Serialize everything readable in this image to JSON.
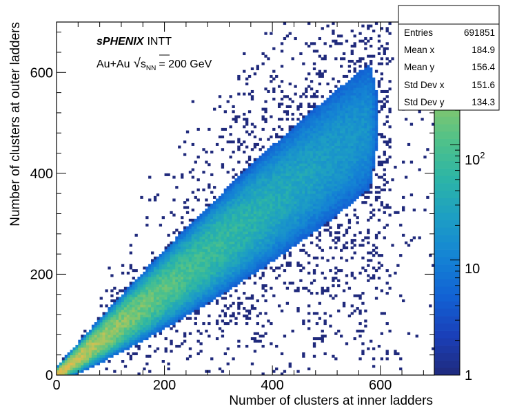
{
  "chart_data": {
    "type": "heatmap",
    "title": "",
    "xlabel": "Number of clusters at inner ladders",
    "ylabel": "Number of clusters at outer ladders",
    "xlim": [
      0,
      700
    ],
    "ylim": [
      0,
      700
    ],
    "x_ticks": [
      0,
      200,
      400,
      600
    ],
    "y_ticks": [
      0,
      200,
      400,
      600
    ],
    "grid": false,
    "colorbar": {
      "scale": "log",
      "range": [
        1,
        1200
      ],
      "tick_values": [
        1,
        10,
        100
      ],
      "tick_labels": [
        {
          "base": "1",
          "exp": ""
        },
        {
          "base": "10",
          "exp": ""
        },
        {
          "base": "10",
          "exp": "2"
        }
      ],
      "palette": [
        "#202a7c",
        "#1a3fb8",
        "#1262d4",
        "#1483d4",
        "#1d9ec4",
        "#2cb5a6",
        "#52c288",
        "#8ac66a",
        "#c3c257",
        "#e4b94d"
      ]
    },
    "band": {
      "trend_slope": 0.85,
      "x_extent": [
        0,
        580
      ],
      "peak_at_origin": true
    },
    "annotations": {
      "experiment": "sPHENIX",
      "detector": "INTT",
      "collision": "Au+Au",
      "sqrt_symbol": "√",
      "sqrt_var": "s",
      "sqrt_sub": "NN",
      "energy": "= 200 GeV"
    },
    "stats": {
      "legend_position": "top-right",
      "rows": [
        {
          "label": "Entries",
          "value": "691851"
        },
        {
          "label": "Mean x",
          "value": "184.9"
        },
        {
          "label": "Mean y",
          "value": "156.4"
        },
        {
          "label": "Std Dev x",
          "value": "151.6"
        },
        {
          "label": "Std Dev y",
          "value": "134.3"
        }
      ]
    }
  }
}
